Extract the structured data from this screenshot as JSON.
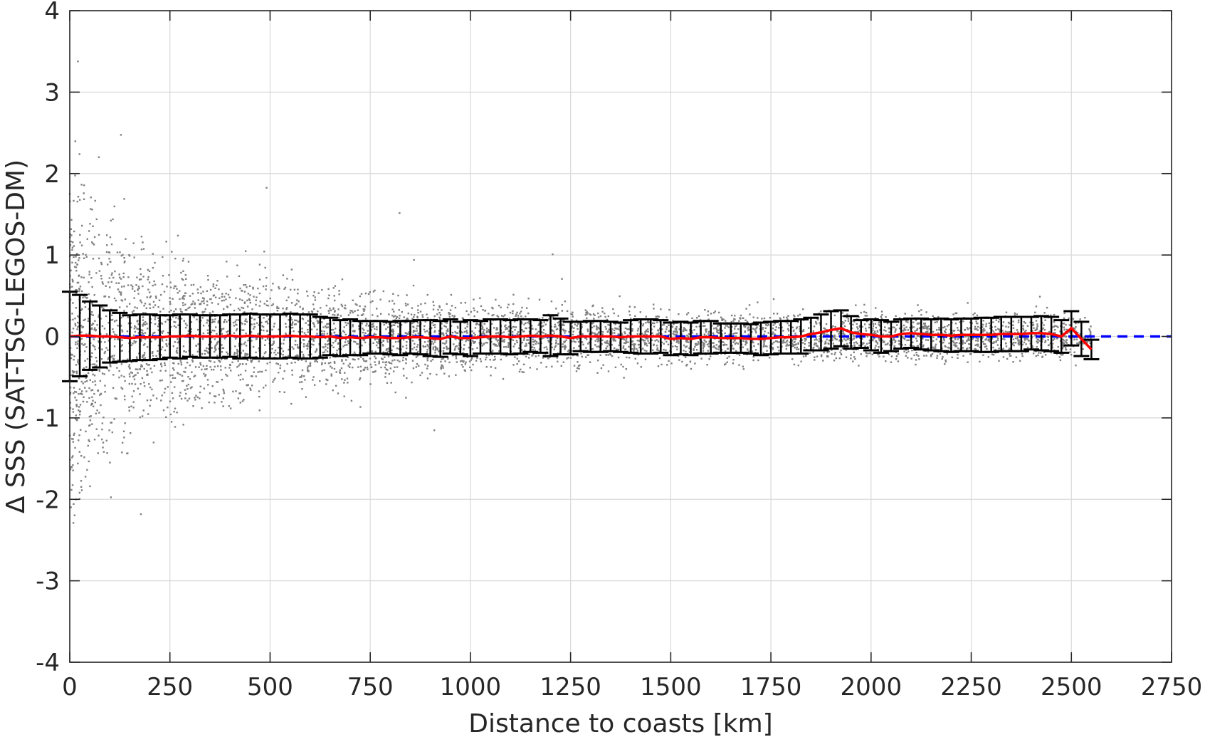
{
  "chart_data": {
    "type": "scatter",
    "title": "",
    "xlabel": "Distance to coasts [km]",
    "ylabel": "Δ SSS (SAT-TSG-LEGOS-DM)",
    "xlim": [
      0,
      2750
    ],
    "ylim": [
      -4,
      4
    ],
    "xticks": [
      0,
      250,
      500,
      750,
      1000,
      1250,
      1500,
      1750,
      2000,
      2250,
      2500,
      2750
    ],
    "yticks": [
      -4,
      -3,
      -2,
      -1,
      0,
      1,
      2,
      3,
      4
    ],
    "xtick_labels": [
      "0",
      "250",
      "500",
      "750",
      "1000",
      "1250",
      "1500",
      "1750",
      "2000",
      "2250",
      "2500",
      "2750"
    ],
    "ytick_labels": [
      "-4",
      "-3",
      "-2",
      "-1",
      "0",
      "1",
      "2",
      "3",
      "4"
    ],
    "grid": true,
    "colors": {
      "scatter": "#808080",
      "mean_line": "#ff0000",
      "error_bars": "#000000",
      "zero_line": "#0000ff",
      "grid": "#d9d9d9",
      "axes": "#262626"
    },
    "series": [
      {
        "type": "scatter",
        "envelope": {
          "x": [
            0,
            50,
            100,
            200,
            300,
            400,
            500,
            600,
            700,
            800,
            900,
            1000,
            1200,
            1400,
            1600,
            1800,
            2000,
            2200,
            2400,
            2500,
            2550
          ],
          "spread": [
            1.8,
            1.5,
            1.2,
            0.95,
            0.85,
            0.75,
            0.65,
            0.55,
            0.5,
            0.45,
            0.4,
            0.38,
            0.33,
            0.3,
            0.28,
            0.27,
            0.26,
            0.25,
            0.25,
            0.22,
            0.1
          ]
        }
      },
      {
        "type": "errorbar",
        "x": [
          0,
          25,
          50,
          75,
          100,
          125,
          150,
          175,
          200,
          225,
          250,
          275,
          300,
          325,
          350,
          375,
          400,
          425,
          450,
          475,
          500,
          525,
          550,
          575,
          600,
          625,
          650,
          675,
          700,
          725,
          750,
          775,
          800,
          825,
          850,
          875,
          900,
          925,
          950,
          975,
          1000,
          1025,
          1050,
          1075,
          1100,
          1125,
          1150,
          1175,
          1200,
          1225,
          1250,
          1275,
          1300,
          1325,
          1350,
          1375,
          1400,
          1425,
          1450,
          1475,
          1500,
          1525,
          1550,
          1575,
          1600,
          1625,
          1650,
          1675,
          1700,
          1725,
          1750,
          1775,
          1800,
          1825,
          1850,
          1875,
          1900,
          1925,
          1950,
          1975,
          2000,
          2025,
          2050,
          2075,
          2100,
          2125,
          2150,
          2175,
          2200,
          2225,
          2250,
          2275,
          2300,
          2325,
          2350,
          2375,
          2400,
          2425,
          2450,
          2475,
          2500,
          2525,
          2550
        ],
        "mean": [
          0.0,
          0.01,
          0.01,
          0.0,
          0.0,
          -0.01,
          -0.02,
          -0.01,
          -0.01,
          -0.01,
          0.0,
          0.0,
          0.01,
          0.0,
          0.0,
          0.0,
          0.01,
          0.0,
          0.01,
          0.0,
          0.0,
          0.0,
          0.01,
          0.0,
          0.0,
          -0.01,
          0.0,
          -0.02,
          -0.01,
          -0.02,
          -0.01,
          -0.01,
          -0.02,
          -0.02,
          -0.01,
          -0.01,
          -0.02,
          -0.03,
          0.0,
          -0.02,
          -0.02,
          -0.01,
          0.0,
          0.0,
          -0.01,
          0.0,
          0.01,
          0.0,
          0.01,
          0.0,
          -0.02,
          0.0,
          0.0,
          0.0,
          0.0,
          -0.01,
          0.0,
          0.0,
          0.0,
          0.0,
          -0.03,
          -0.02,
          -0.03,
          -0.01,
          -0.01,
          -0.02,
          -0.02,
          -0.02,
          -0.03,
          -0.03,
          -0.02,
          -0.01,
          -0.01,
          0.0,
          0.03,
          0.05,
          0.08,
          0.1,
          0.05,
          0.03,
          0.02,
          0.0,
          0.0,
          0.03,
          0.04,
          0.03,
          0.02,
          0.02,
          0.01,
          0.02,
          0.02,
          0.02,
          0.02,
          0.03,
          0.03,
          0.03,
          0.04,
          0.04,
          0.03,
          0.0,
          0.1,
          -0.03,
          -0.16
        ],
        "std": [
          0.55,
          0.5,
          0.42,
          0.38,
          0.32,
          0.3,
          0.28,
          0.28,
          0.28,
          0.27,
          0.26,
          0.27,
          0.26,
          0.26,
          0.26,
          0.26,
          0.26,
          0.27,
          0.27,
          0.27,
          0.27,
          0.27,
          0.27,
          0.27,
          0.27,
          0.25,
          0.23,
          0.22,
          0.22,
          0.21,
          0.2,
          0.2,
          0.2,
          0.21,
          0.2,
          0.21,
          0.22,
          0.22,
          0.21,
          0.2,
          0.22,
          0.2,
          0.21,
          0.21,
          0.21,
          0.21,
          0.2,
          0.2,
          0.25,
          0.22,
          0.2,
          0.18,
          0.19,
          0.19,
          0.18,
          0.18,
          0.2,
          0.21,
          0.21,
          0.2,
          0.2,
          0.2,
          0.2,
          0.2,
          0.2,
          0.18,
          0.18,
          0.18,
          0.18,
          0.2,
          0.2,
          0.2,
          0.2,
          0.21,
          0.2,
          0.22,
          0.23,
          0.22,
          0.2,
          0.17,
          0.19,
          0.2,
          0.18,
          0.18,
          0.18,
          0.19,
          0.19,
          0.2,
          0.2,
          0.2,
          0.2,
          0.21,
          0.21,
          0.21,
          0.21,
          0.21,
          0.2,
          0.21,
          0.21,
          0.2,
          0.21,
          0.21,
          0.12
        ]
      },
      {
        "type": "line",
        "style": "dashed",
        "x": [
          0,
          2750
        ],
        "y": [
          0,
          0
        ]
      }
    ]
  }
}
